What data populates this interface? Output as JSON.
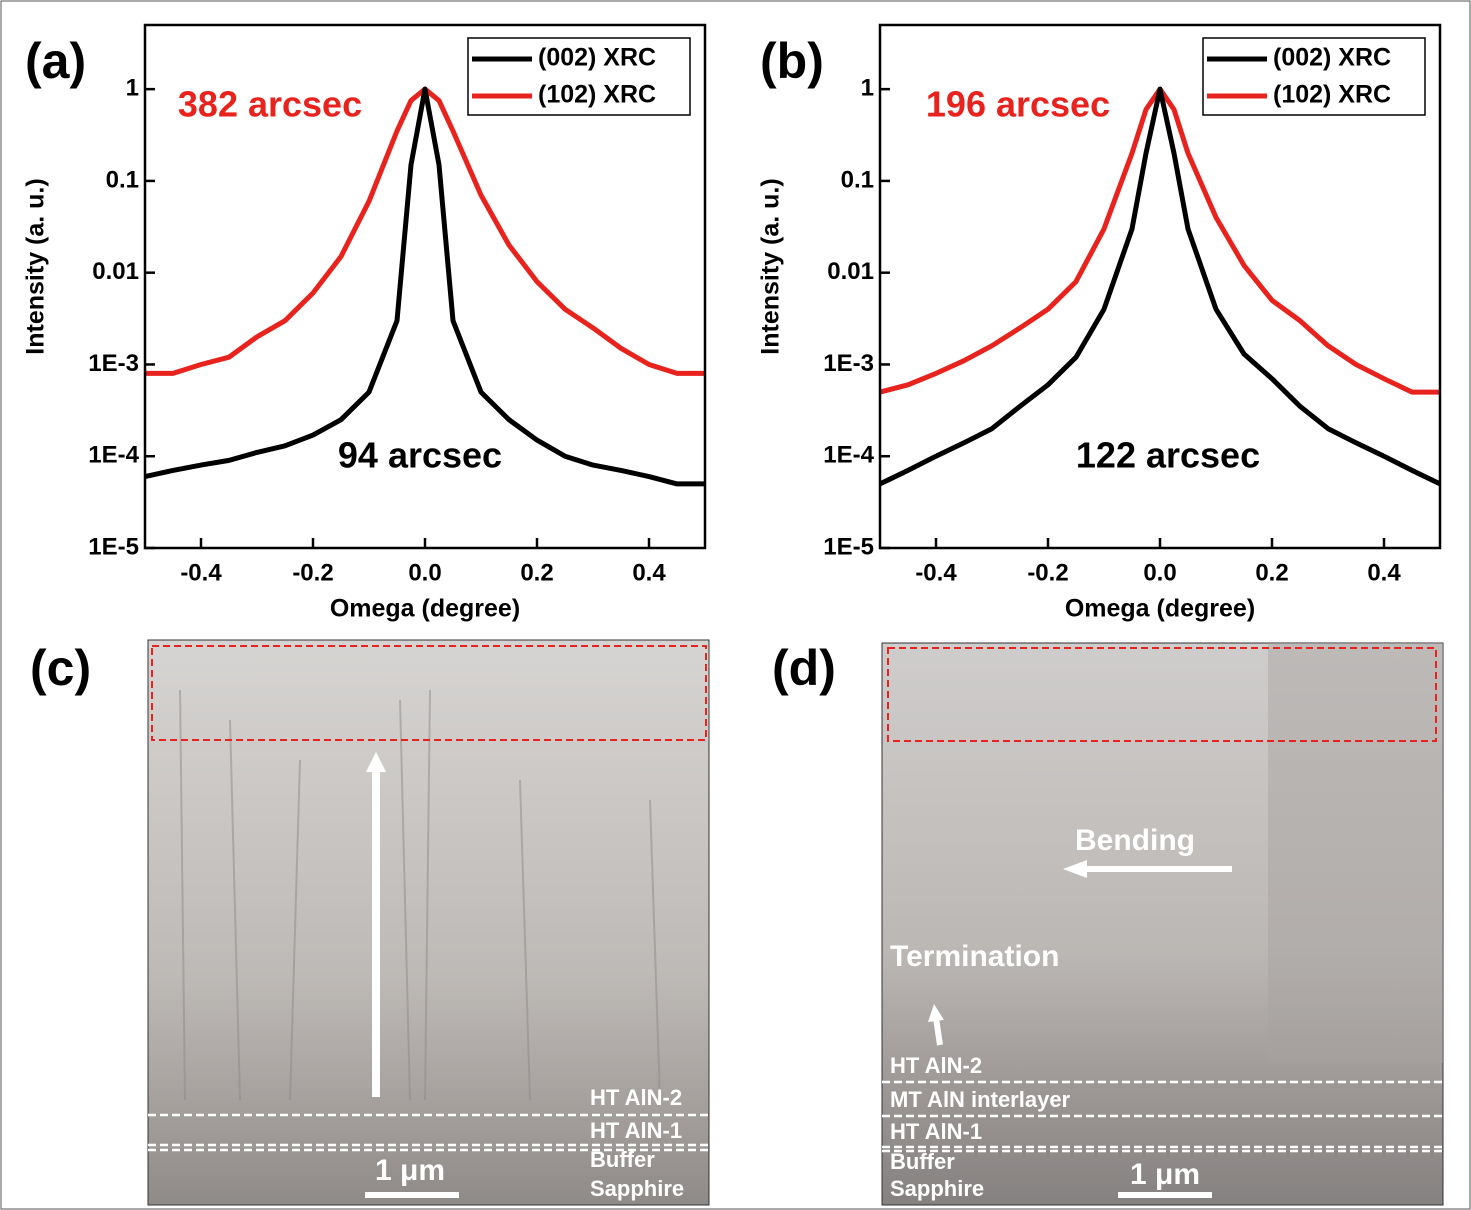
{
  "chart_data": [
    {
      "type": "line",
      "panel_label": "(a)",
      "xlabel": "Omega (degree)",
      "ylabel": "Intensity (a. u.)",
      "log_y": true,
      "xlim": [
        -0.5,
        0.5
      ],
      "xticks": [
        -0.4,
        -0.2,
        {
          "value": 0,
          "label": "0.0"
        },
        0.2,
        0.4
      ],
      "ylim": [
        1e-05,
        5
      ],
      "yticks": [
        {
          "value": 1e-05,
          "label": "1E-5"
        },
        {
          "value": 0.0001,
          "label": "1E-4"
        },
        {
          "value": 0.001,
          "label": "1E-3"
        },
        0.01,
        0.1,
        1
      ],
      "legend": "upper right",
      "annotations": [
        {
          "text": "382 arcsec",
          "color": "#e8231e"
        },
        {
          "text": "94 arcsec",
          "color": "#000000"
        }
      ],
      "x": [
        -0.5,
        -0.45,
        -0.4,
        -0.35,
        -0.3,
        -0.25,
        -0.2,
        -0.15,
        -0.1,
        -0.05,
        -0.025,
        0,
        0.025,
        0.05,
        0.1,
        0.15,
        0.2,
        0.25,
        0.3,
        0.35,
        0.4,
        0.45,
        0.5
      ],
      "series": [
        {
          "name": "(002) XRC",
          "color": "#000000",
          "values": [
            6e-05,
            7e-05,
            8e-05,
            9e-05,
            0.00011,
            0.00013,
            0.00017,
            0.00025,
            0.0005,
            0.003,
            0.15,
            1,
            0.15,
            0.003,
            0.0005,
            0.00025,
            0.00015,
            0.0001,
            8e-05,
            7e-05,
            6e-05,
            5e-05,
            5e-05
          ]
        },
        {
          "name": "(102) XRC",
          "color": "#e8231e",
          "values": [
            0.0008,
            0.0008,
            0.001,
            0.0012,
            0.002,
            0.003,
            0.006,
            0.015,
            0.06,
            0.35,
            0.75,
            1,
            0.75,
            0.35,
            0.07,
            0.02,
            0.008,
            0.004,
            0.0025,
            0.0015,
            0.001,
            0.0008,
            0.0008
          ]
        }
      ]
    },
    {
      "type": "line",
      "panel_label": "(b)",
      "xlabel": "Omega (degree)",
      "ylabel": "Intensity (a. u.)",
      "log_y": true,
      "xlim": [
        -0.5,
        0.5
      ],
      "xticks": [
        -0.4,
        -0.2,
        {
          "value": 0,
          "label": "0.0"
        },
        0.2,
        0.4
      ],
      "ylim": [
        1e-05,
        5
      ],
      "yticks": [
        {
          "value": 1e-05,
          "label": "1E-5"
        },
        {
          "value": 0.0001,
          "label": "1E-4"
        },
        {
          "value": 0.001,
          "label": "1E-3"
        },
        0.01,
        0.1,
        1
      ],
      "legend": "upper right",
      "annotations": [
        {
          "text": "196 arcsec",
          "color": "#e8231e"
        },
        {
          "text": "122 arcsec",
          "color": "#000000"
        }
      ],
      "x": [
        -0.5,
        -0.45,
        -0.4,
        -0.35,
        -0.3,
        -0.25,
        -0.2,
        -0.15,
        -0.1,
        -0.05,
        -0.025,
        0,
        0.025,
        0.05,
        0.1,
        0.15,
        0.2,
        0.25,
        0.3,
        0.35,
        0.4,
        0.45,
        0.5
      ],
      "series": [
        {
          "name": "(002) XRC",
          "color": "#000000",
          "values": [
            5e-05,
            7e-05,
            0.0001,
            0.00014,
            0.0002,
            0.00035,
            0.0006,
            0.0012,
            0.004,
            0.03,
            0.2,
            1,
            0.2,
            0.03,
            0.004,
            0.0013,
            0.0007,
            0.00035,
            0.0002,
            0.00014,
            0.0001,
            7e-05,
            5e-05
          ]
        },
        {
          "name": "(102) XRC",
          "color": "#e8231e",
          "values": [
            0.0005,
            0.0006,
            0.0008,
            0.0011,
            0.0016,
            0.0025,
            0.004,
            0.008,
            0.03,
            0.2,
            0.6,
            1,
            0.6,
            0.2,
            0.04,
            0.012,
            0.005,
            0.003,
            0.0016,
            0.001,
            0.0007,
            0.0005,
            0.0005
          ]
        }
      ]
    }
  ],
  "images": [
    {
      "panel_label": "(c)",
      "layer_labels": [
        "HT AlN-2",
        "HT AlN-1",
        "Buffer",
        "Sapphire"
      ],
      "scale_bar": "1 μm"
    },
    {
      "panel_label": "(d)",
      "layer_labels": [
        "HT AlN-2",
        "MT AlN interlayer",
        "HT AlN-1",
        "Buffer",
        "Sapphire"
      ],
      "scale_bar": "1 μm",
      "annotations": [
        "Bending",
        "Termination"
      ]
    }
  ]
}
